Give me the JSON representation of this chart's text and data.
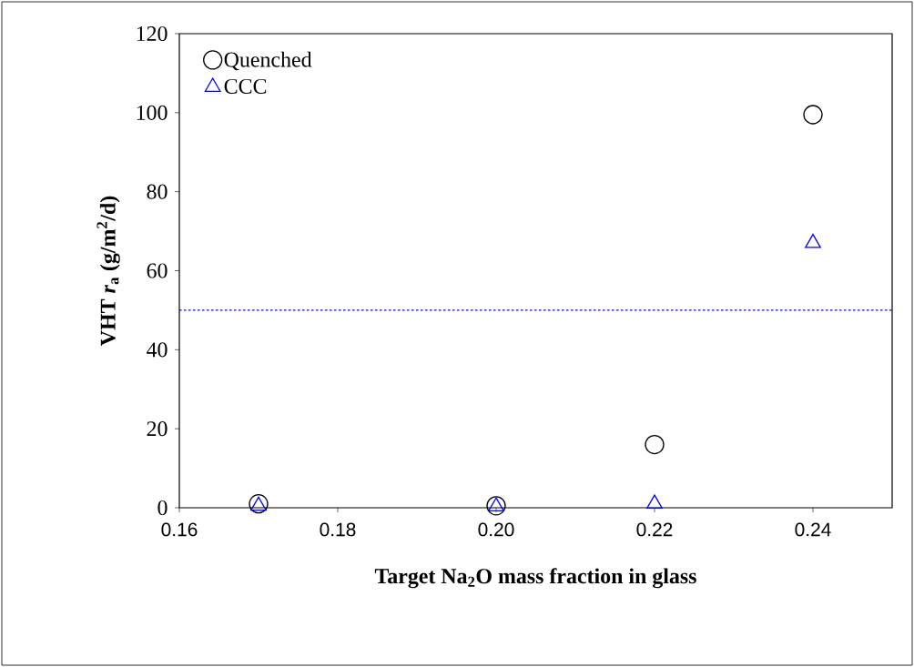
{
  "chart_data": {
    "type": "scatter",
    "xlabel": "Target Na$_{2}$O mass fraction in glass",
    "ylabel": "VHT *r*$_{a}$ (g/m$^{2}$/d)",
    "xlim": [
      0.16,
      0.25
    ],
    "xticks": [
      {
        "value": 0.16,
        "label": "0.16"
      },
      {
        "value": 0.18,
        "label": "0.18"
      },
      {
        "value": 0.2,
        "label": "0.20"
      },
      {
        "value": 0.22,
        "label": "0.22"
      },
      {
        "value": 0.24,
        "label": "0.24"
      }
    ],
    "ylim": [
      0,
      120
    ],
    "yticks": [
      0,
      20,
      40,
      60,
      80,
      100,
      120
    ],
    "series": [
      {
        "name": "Quenched",
        "color": "#000000",
        "marker": "circle",
        "x": [
          0.17,
          0.2,
          0.22,
          0.24
        ],
        "values": [
          1,
          0.5,
          16,
          99.5
        ]
      },
      {
        "name": "CCC",
        "color": "#0000ff",
        "marker": "triangle",
        "x": [
          0.17,
          0.2,
          0.22,
          0.24
        ],
        "values": [
          0.5,
          0.3,
          1,
          67
        ]
      }
    ],
    "ref_lines": [
      {
        "axis": "y",
        "value": 50,
        "color": "#0000ff",
        "line_style": "dotted"
      }
    ],
    "legend": "top left",
    "grid": false
  }
}
